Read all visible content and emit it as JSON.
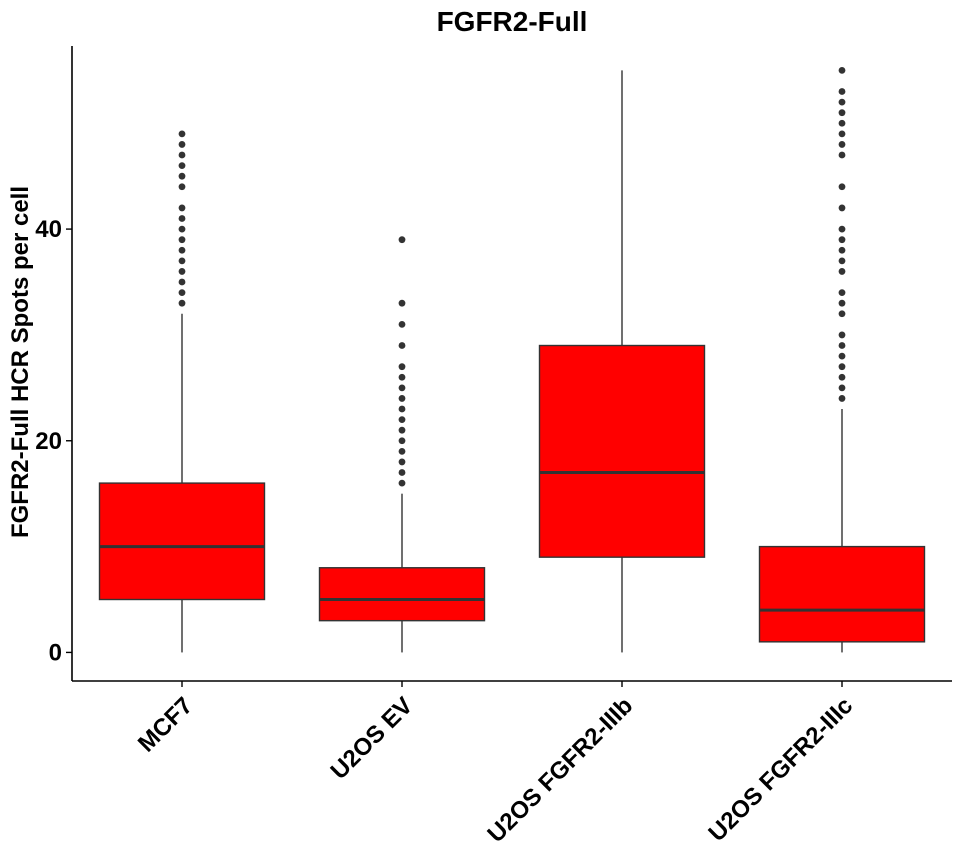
{
  "chart_data": {
    "type": "boxplot",
    "title": "FGFR2-Full",
    "xlabel": "",
    "ylabel": "FGFR2-Full HCR Spots per cell",
    "ylim": [
      -2.7,
      57.3
    ],
    "yticks": [
      0,
      20,
      40
    ],
    "grid": false,
    "legend": "none",
    "box_color": "#ff0000",
    "line_color": "#333333",
    "categories": [
      "MCF7",
      "U2OS EV",
      "U2OS FGFR2-IIIb",
      "U2OS FGFR2-IIIc"
    ],
    "boxes": [
      {
        "category": "MCF7",
        "whisker_low": 0,
        "q1": 5,
        "median": 10,
        "q3": 16,
        "whisker_high": 32,
        "outliers": [
          33,
          34,
          35,
          36,
          37,
          38,
          39,
          40,
          41,
          42,
          44,
          45,
          46,
          47,
          48,
          49
        ]
      },
      {
        "category": "U2OS EV",
        "whisker_low": 0,
        "q1": 3,
        "median": 5,
        "q3": 8,
        "whisker_high": 15,
        "outliers": [
          16,
          17,
          18,
          19,
          20,
          21,
          22,
          23,
          24,
          25,
          26,
          27,
          29,
          31,
          33,
          39
        ]
      },
      {
        "category": "U2OS FGFR2-IIIb",
        "whisker_low": 0,
        "q1": 9,
        "median": 17,
        "q3": 29,
        "whisker_high": 55,
        "outliers": []
      },
      {
        "category": "U2OS FGFR2-IIIc",
        "whisker_low": 0,
        "q1": 1,
        "median": 4,
        "q3": 10,
        "whisker_high": 23,
        "outliers": [
          24,
          25,
          26,
          27,
          28,
          29,
          30,
          32,
          33,
          34,
          36,
          37,
          38,
          39,
          40,
          42,
          44,
          47,
          48,
          49,
          50,
          51,
          52,
          53,
          55
        ]
      }
    ]
  }
}
